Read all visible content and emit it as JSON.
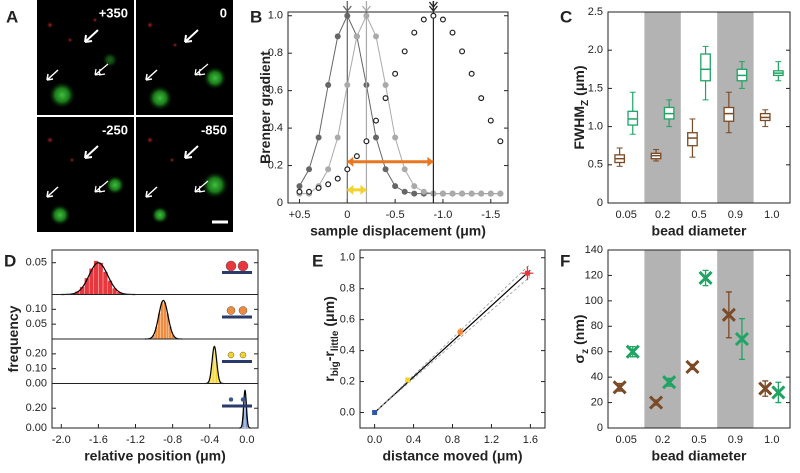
{
  "panel_a": {
    "letter": "A",
    "tiles": [
      "+350",
      "0",
      "-250",
      "-850"
    ]
  },
  "chart_data": [
    {
      "panel": "B",
      "type": "line",
      "xlabel": "sample displacement (μm)",
      "ylabel": [
        {
          "text": "Brenner gradient"
        }
      ],
      "x": [
        0.5,
        0.4,
        0.3,
        0.2,
        0.1,
        0,
        -0.1,
        -0.2,
        -0.3,
        -0.4,
        -0.5,
        -0.6,
        -0.7,
        -0.8,
        -0.9,
        -1.0,
        -1.1,
        -1.2,
        -1.3,
        -1.4,
        -1.5,
        -1.6
      ],
      "xlim": [
        0.62,
        -1.68
      ],
      "xticks": [
        {
          "value": 0.5,
          "label": "+0.5"
        },
        0,
        -0.5,
        {
          "value": -1,
          "label": "-1.0"
        },
        -1.5
      ],
      "ylim": [
        0,
        1.02
      ],
      "yticks": [
        0,
        0.2,
        0.4,
        0.6,
        0.8,
        {
          "value": 1,
          "label": "1.0"
        }
      ],
      "series": [
        {
          "color": "#666666",
          "filled": true,
          "line": true,
          "arrowheads": 1,
          "peak": 0,
          "values": [
            0.09,
            0.18,
            0.35,
            0.63,
            0.89,
            1.0,
            0.89,
            0.63,
            0.35,
            0.18,
            0.09,
            0.06,
            0.05,
            0.05,
            0.05,
            0.05,
            0.05,
            0.05,
            0.05,
            0.05,
            0.05,
            0.05
          ]
        },
        {
          "color": "#aaaaaa",
          "filled": true,
          "line": true,
          "arrowheads": 1,
          "peak": -0.2,
          "values": [
            0.05,
            0.05,
            0.09,
            0.18,
            0.35,
            0.63,
            0.89,
            1.0,
            0.89,
            0.63,
            0.35,
            0.18,
            0.09,
            0.06,
            0.05,
            0.05,
            0.05,
            0.05,
            0.05,
            0.05,
            0.05,
            0.05
          ]
        },
        {
          "color": "#222222",
          "filled": false,
          "line": false,
          "arrowheads": 2,
          "peak": -0.9,
          "values": [
            0.06,
            0.06,
            0.08,
            0.1,
            0.13,
            0.18,
            0.25,
            0.33,
            0.44,
            0.56,
            0.69,
            0.81,
            0.91,
            0.98,
            1.0,
            0.98,
            0.91,
            0.81,
            0.69,
            0.56,
            0.44,
            0.33
          ]
        }
      ],
      "arrows": [
        {
          "from": 0,
          "to": -0.9,
          "y": 0.22,
          "color": "#e87722"
        },
        {
          "from": 0,
          "to": -0.2,
          "y": 0.07,
          "color": "#f2d22e"
        }
      ]
    },
    {
      "panel": "C",
      "type": "box",
      "xlabel": "bead diameter",
      "ylabel": [
        {
          "text": "FWHM"
        },
        {
          "text": "Z",
          "sub": true
        },
        {
          "text": "(μm)"
        }
      ],
      "categories": [
        "0.05",
        "0.2",
        "0.5",
        "0.9",
        "1.0"
      ],
      "shaded": [
        "0.2",
        "0.9"
      ],
      "ylim": [
        0,
        2.5
      ],
      "yticks": [
        0,
        0.5,
        {
          "value": 1,
          "label": "1.0"
        },
        1.5,
        {
          "value": 2,
          "label": "2.0"
        },
        2.5
      ],
      "series": [
        {
          "color": "#7b4a26",
          "values": [
            0.58,
            0.62,
            0.85,
            1.17,
            1.12
          ],
          "q1": [
            0.53,
            0.58,
            0.75,
            1.07,
            1.08
          ],
          "q3": [
            0.63,
            0.65,
            0.92,
            1.25,
            1.17
          ],
          "low": [
            0.48,
            0.55,
            0.6,
            0.92,
            1.0
          ],
          "high": [
            0.72,
            0.7,
            1.1,
            1.45,
            1.22
          ]
        },
        {
          "color": "#1fa464",
          "values": [
            1.1,
            1.17,
            1.75,
            1.67,
            1.7
          ],
          "q1": [
            1.02,
            1.1,
            1.6,
            1.6,
            1.67
          ],
          "q3": [
            1.2,
            1.25,
            1.95,
            1.75,
            1.73
          ],
          "low": [
            0.9,
            1.0,
            1.35,
            1.5,
            1.6
          ],
          "high": [
            1.45,
            1.35,
            2.05,
            1.85,
            1.85
          ]
        }
      ]
    },
    {
      "panel": "D",
      "type": "histogram",
      "xlabel": "relative position (μm)",
      "ylabel": [
        {
          "text": "frequency"
        }
      ],
      "xlim": [
        -2.1,
        0.12
      ],
      "xticks": [
        {
          "value": -2,
          "label": "-2.0"
        },
        -1.6,
        -1.2,
        -0.8,
        -0.4,
        {
          "value": 0,
          "label": "0.0"
        }
      ],
      "rows": [
        {
          "color": "#e8383d",
          "ylim": [
            0,
            0.07
          ],
          "yticks": [
            0.05
          ],
          "bins": [
            -1.85,
            -1.8,
            -1.75,
            -1.7,
            -1.65,
            -1.6,
            -1.55,
            -1.5,
            -1.45,
            -1.4,
            -1.35
          ],
          "counts": [
            0.005,
            0.012,
            0.026,
            0.041,
            0.053,
            0.05,
            0.036,
            0.022,
            0.01,
            0.004
          ],
          "fit": {
            "mean": -1.6,
            "sd": 0.1,
            "peak": 0.05
          }
        },
        {
          "color": "#f08a3c",
          "ylim": [
            0,
            0.15
          ],
          "yticks": [
            0.05,
            {
              "value": 0.1,
              "label": "0.10"
            }
          ],
          "bins": [
            -1.05,
            -1.02,
            -0.99,
            -0.96,
            -0.93,
            -0.9,
            -0.87,
            -0.84,
            -0.81,
            -0.78,
            -0.75
          ],
          "counts": [
            0.003,
            0.014,
            0.042,
            0.087,
            0.124,
            0.124,
            0.087,
            0.042,
            0.014,
            0.003
          ],
          "fit": {
            "mean": -0.9,
            "sd": 0.05,
            "peak": 0.13
          }
        },
        {
          "color": "#f5d423",
          "ylim": [
            0,
            0.3
          ],
          "yticks": [
            {
              "value": 0,
              "label": "0.00"
            },
            {
              "value": 0.1,
              "label": "0.10"
            },
            {
              "value": 0.2,
              "label": "0.20"
            }
          ],
          "bins": [
            -0.425,
            -0.41,
            -0.395,
            -0.38,
            -0.365,
            -0.35,
            -0.335,
            -0.32,
            -0.305,
            -0.29,
            -0.275
          ],
          "counts": [
            0.006,
            0.027,
            0.081,
            0.167,
            0.239,
            0.239,
            0.167,
            0.081,
            0.027,
            0.006
          ],
          "fit": {
            "mean": -0.35,
            "sd": 0.025,
            "peak": 0.25
          }
        },
        {
          "color": "#2f56a8",
          "ylim": [
            0,
            0.45
          ],
          "yticks": [
            {
              "value": 0,
              "label": "0.00"
            },
            {
              "value": 0.2,
              "label": "0.20"
            }
          ],
          "bins": [
            -0.065,
            -0.056,
            -0.047,
            -0.038,
            -0.029,
            -0.02,
            -0.011,
            -0.002,
            0.007,
            0.016,
            0.025
          ],
          "counts": [
            0.009,
            0.042,
            0.124,
            0.253,
            0.363,
            0.363,
            0.253,
            0.124,
            0.042,
            0.009
          ],
          "fit": {
            "mean": -0.02,
            "sd": 0.015,
            "peak": 0.38
          }
        }
      ]
    },
    {
      "panel": "E",
      "type": "scatter",
      "xlabel": "distance moved (μm)",
      "ylabel": [
        {
          "text": "r"
        },
        {
          "text": "big",
          "sub": true
        },
        {
          "text": "-r"
        },
        {
          "text": "little",
          "sub": true
        },
        {
          "text": "(μm)"
        }
      ],
      "xlim": [
        -0.15,
        1.75
      ],
      "xticks": [
        {
          "value": 0,
          "label": "0.0"
        },
        0.4,
        0.8,
        1.2,
        1.6
      ],
      "ylim": [
        -0.1,
        1.05
      ],
      "yticks": [
        {
          "value": 0,
          "label": "0.0"
        },
        0.2,
        0.4,
        0.6,
        0.8,
        {
          "value": 1,
          "label": "1.0"
        }
      ],
      "x": [
        0,
        0.34,
        0.88,
        1.57
      ],
      "values": [
        0,
        0.21,
        0.52,
        0.9
      ],
      "xerr": [
        0.01,
        0.02,
        0.03,
        0.06
      ],
      "yerr": [
        0.005,
        0.01,
        0.025,
        0.045
      ],
      "colors": [
        "#2f56a8",
        "#f5d423",
        "#f08a3c",
        "#e8383d"
      ],
      "fits": [
        {
          "slope": 0.575,
          "color": "#000000",
          "dashed": false
        },
        {
          "slope": 0.6,
          "color": "#999999",
          "dashed": true
        },
        {
          "slope": 0.55,
          "color": "#999999",
          "dashed": true
        }
      ]
    },
    {
      "panel": "F",
      "type": "errorbar",
      "xlabel": "bead diameter",
      "ylabel": [
        {
          "text": "σ"
        },
        {
          "text": "z",
          "sub": true
        },
        {
          "text": "(nm)"
        }
      ],
      "categories": [
        "0.05",
        "0.2",
        "0.5",
        "0.9",
        "1.0"
      ],
      "shaded": [
        "0.2",
        "0.9"
      ],
      "ylim": [
        0,
        140
      ],
      "yticks": [
        0,
        20,
        40,
        60,
        80,
        100,
        120,
        140
      ],
      "series": [
        {
          "color": "#7b4a26",
          "values": [
            32,
            20,
            48,
            89,
            31
          ],
          "err": [
            3,
            2,
            2,
            18,
            6
          ]
        },
        {
          "color": "#1fa464",
          "values": [
            60,
            36,
            118,
            70,
            28
          ],
          "err": [
            4,
            3,
            6,
            16,
            8
          ]
        }
      ]
    }
  ]
}
